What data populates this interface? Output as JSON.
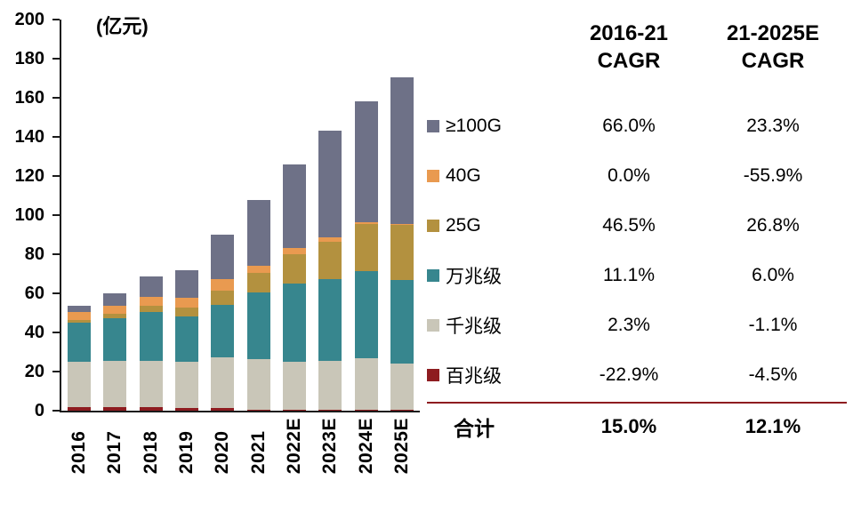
{
  "chart": {
    "unit_label": "(亿元)",
    "y_ticks": [
      0,
      20,
      40,
      60,
      80,
      100,
      120,
      140,
      160,
      180,
      200
    ]
  },
  "chart_data": {
    "type": "bar",
    "stacked": true,
    "title": "",
    "xlabel": "",
    "ylabel": "(亿元)",
    "ylim": [
      0,
      200
    ],
    "grid": false,
    "legend_position": "right",
    "categories": [
      "2016",
      "2017",
      "2018",
      "2019",
      "2020",
      "2021",
      "2022E",
      "2023E",
      "2024E",
      "2025E"
    ],
    "series": [
      {
        "name": "百兆级",
        "color": "#8e1c20",
        "values": [
          2.0,
          1.8,
          1.6,
          1.4,
          1.2,
          0.5,
          0.5,
          0.5,
          0.5,
          0.4
        ]
      },
      {
        "name": "千兆级",
        "color": "#c9c6b8",
        "values": [
          23.0,
          23.5,
          24.0,
          23.5,
          26.0,
          25.8,
          24.5,
          25.0,
          26.5,
          23.6
        ]
      },
      {
        "name": "万兆级",
        "color": "#37868e",
        "values": [
          20.0,
          22.0,
          25.0,
          23.5,
          27.0,
          34.0,
          40.0,
          42.0,
          44.5,
          43.0
        ]
      },
      {
        "name": "25G",
        "color": "#b3913f",
        "values": [
          1.5,
          2.2,
          3.2,
          4.5,
          7.0,
          10.0,
          15.0,
          19.0,
          24.0,
          28.0
        ]
      },
      {
        "name": "40G",
        "color": "#e99a50",
        "values": [
          4.0,
          4.0,
          4.5,
          5.0,
          6.0,
          4.0,
          3.0,
          2.0,
          1.0,
          0.5
        ]
      },
      {
        "name": "≥100G",
        "color": "#6e7187",
        "values": [
          3.0,
          6.5,
          10.5,
          14.0,
          23.0,
          33.5,
          43.0,
          54.5,
          61.5,
          75.0
        ]
      }
    ],
    "totals": [
      53.5,
      60.0,
      68.8,
      71.9,
      90.2,
      107.8,
      126.0,
      143.0,
      158.0,
      170.5
    ]
  },
  "table": {
    "col1_header_line1": "2016-21",
    "col1_header_line2": "CAGR",
    "col2_header_line1": "21-2025E",
    "col2_header_line2": "CAGR",
    "rows": [
      {
        "label": "≥100G",
        "color": "#6e7187",
        "cagr1": "66.0%",
        "cagr2": "23.3%"
      },
      {
        "label": "40G",
        "color": "#e99a50",
        "cagr1": "0.0%",
        "cagr2": "-55.9%"
      },
      {
        "label": "25G",
        "color": "#b3913f",
        "cagr1": "46.5%",
        "cagr2": "26.8%"
      },
      {
        "label": "万兆级",
        "color": "#37868e",
        "cagr1": "11.1%",
        "cagr2": "6.0%"
      },
      {
        "label": "千兆级",
        "color": "#c9c6b8",
        "cagr1": "2.3%",
        "cagr2": "-1.1%"
      },
      {
        "label": "百兆级",
        "color": "#8e1c20",
        "cagr1": "-22.9%",
        "cagr2": "-4.5%"
      }
    ],
    "total": {
      "label": "合计",
      "cagr1": "15.0%",
      "cagr2": "12.1%"
    },
    "divider_color": "#8e1c20"
  }
}
